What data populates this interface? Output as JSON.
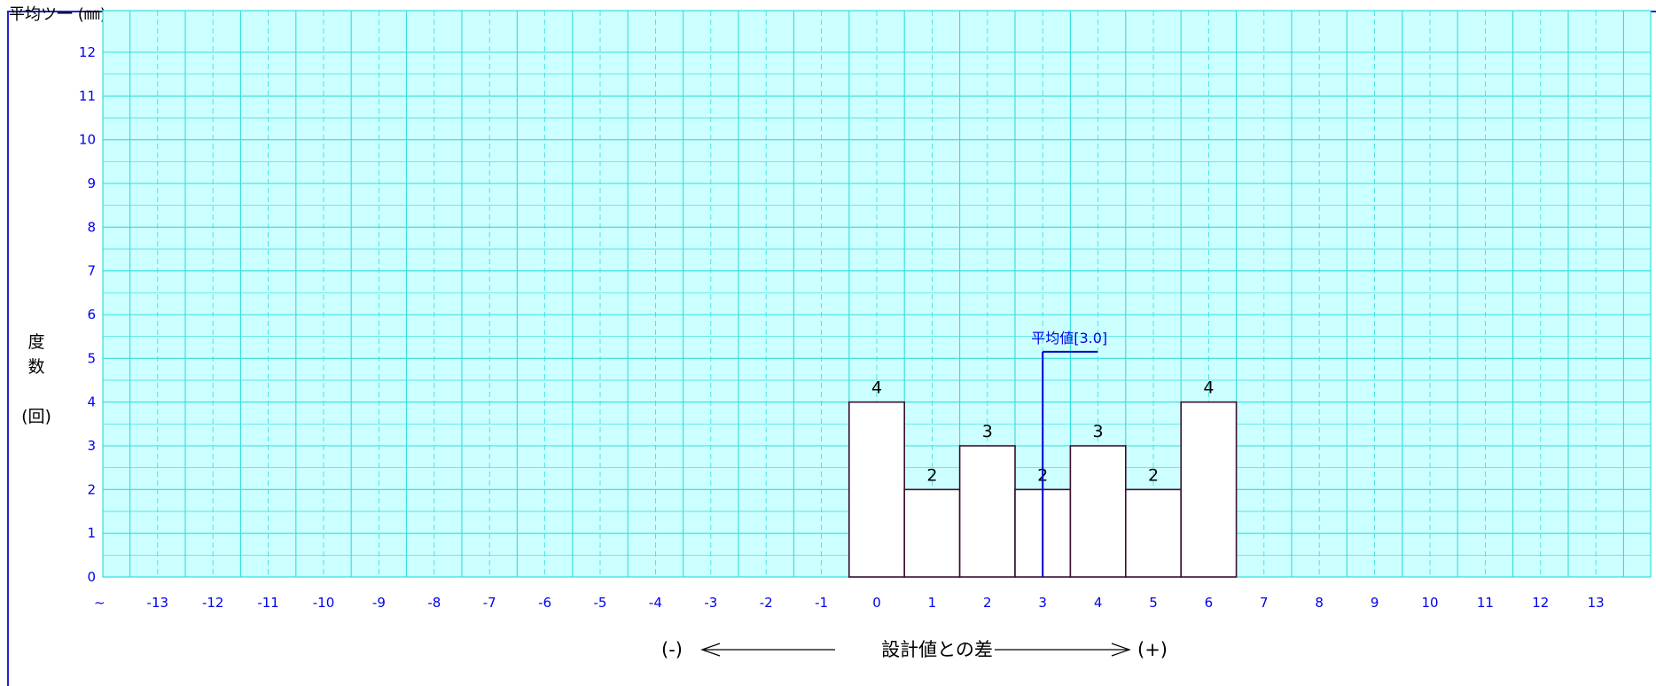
{
  "header": {
    "top_label": "平均ツ一 (㎜)"
  },
  "chart_data": {
    "type": "bar",
    "title": "",
    "xlabel": "設計値との差",
    "xlabel_left": "(-)",
    "xlabel_right": "(+)",
    "ylabel_chars": [
      "度",
      "数"
    ],
    "ylabel_unit": "(回)",
    "x_ticks": [
      "~",
      "-13",
      "-12",
      "-11",
      "-10",
      "-9",
      "-8",
      "-7",
      "-6",
      "-5",
      "-4",
      "-3",
      "-2",
      "-1",
      "0",
      "1",
      "2",
      "3",
      "4",
      "5",
      "6",
      "7",
      "8",
      "9",
      "10",
      "11",
      "12",
      "13",
      "~"
    ],
    "y_ticks": [
      "0",
      "1",
      "2",
      "3",
      "4",
      "5",
      "6",
      "7",
      "8",
      "9",
      "10",
      "11",
      "12"
    ],
    "ylim": [
      0,
      12
    ],
    "grid": true,
    "categories": [
      0,
      1,
      2,
      3,
      4,
      5,
      6
    ],
    "values": [
      4,
      2,
      3,
      2,
      3,
      2,
      4
    ],
    "mean": 3.0,
    "mean_label": "平均値[3.0]",
    "colors": {
      "background": "#ccffff",
      "grid": "#33dddd",
      "tick": "#0000ee",
      "bar_stroke": "#3a1030",
      "mean": "#0000cc",
      "frame": "#2323c8"
    }
  }
}
